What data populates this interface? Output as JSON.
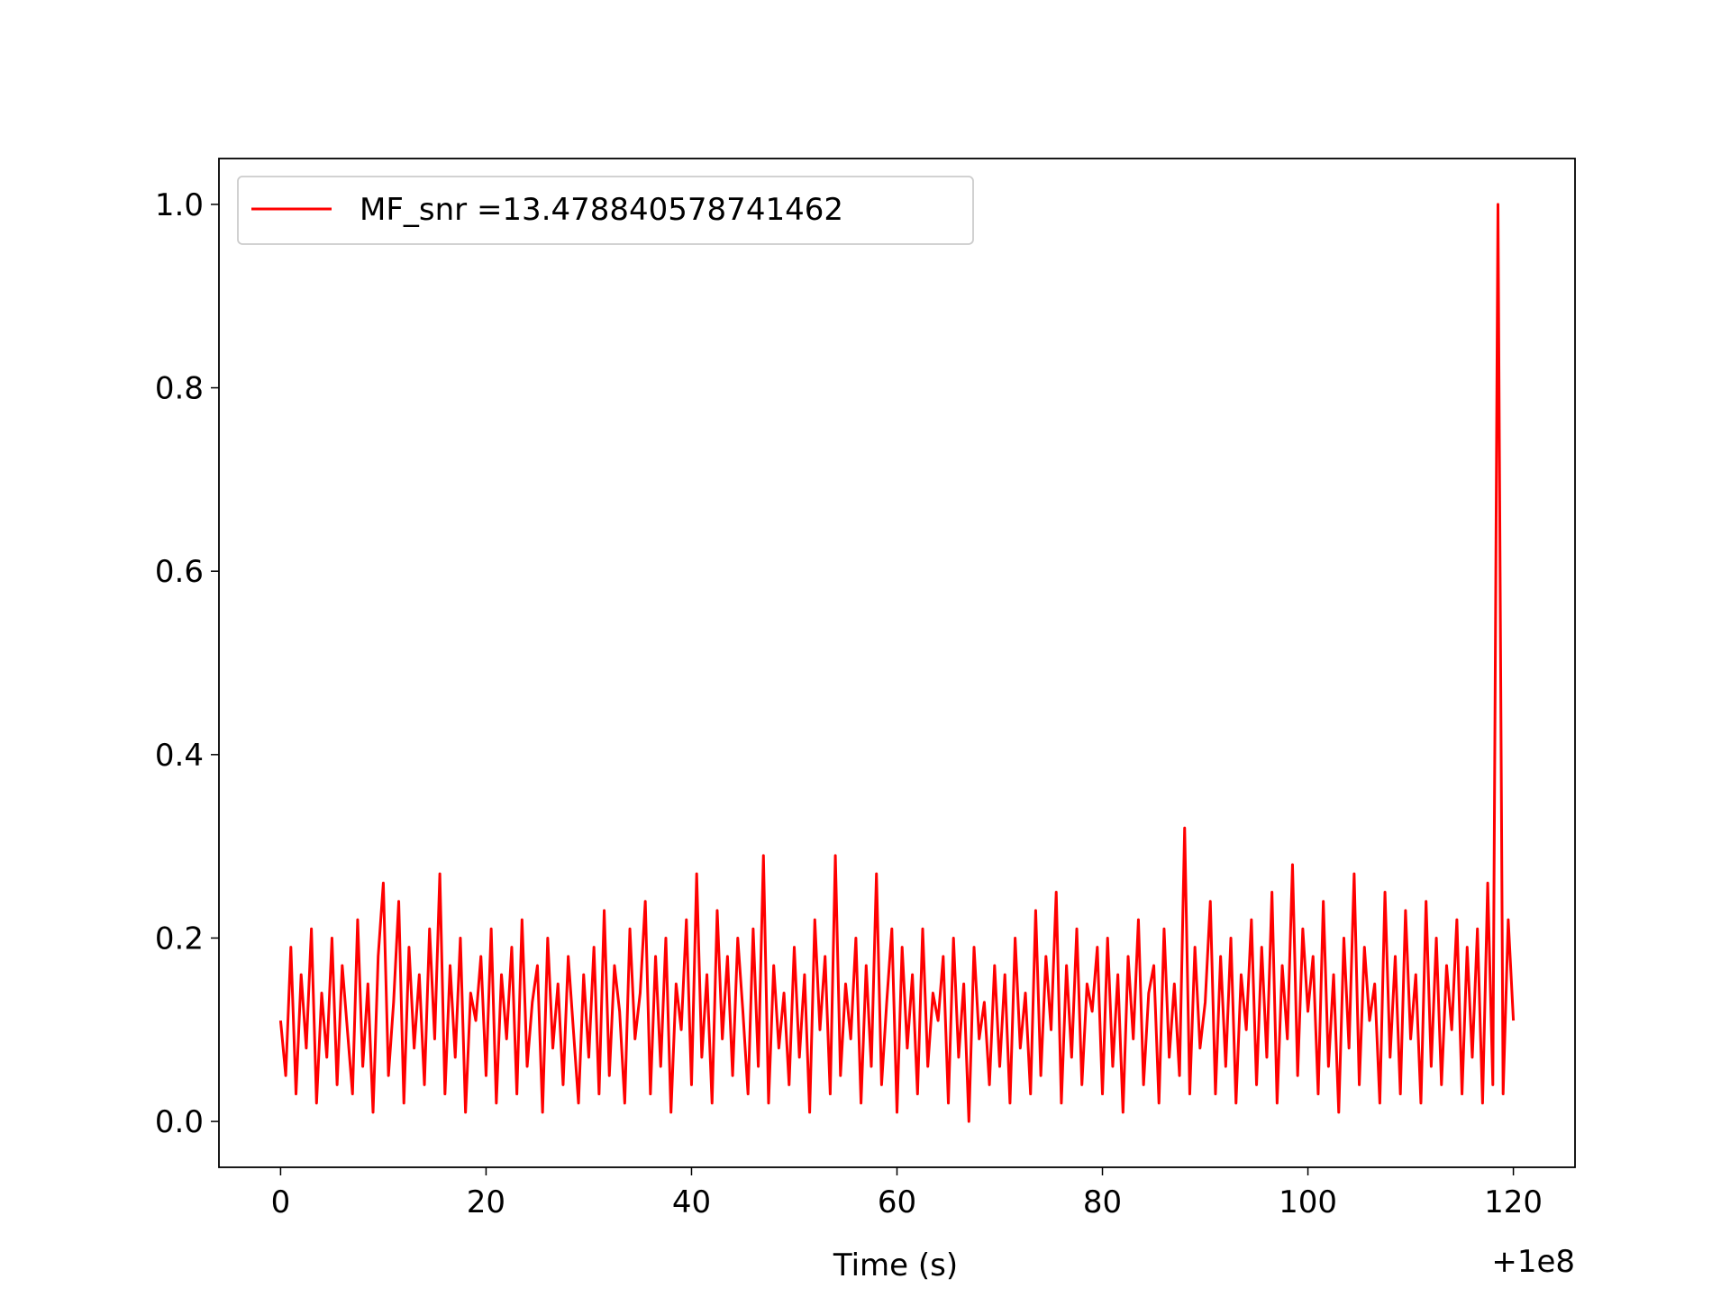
{
  "chart_data": {
    "type": "line",
    "xlabel": "Time (s)",
    "x_offset_label": "+1e8",
    "x": [
      0,
      0.5,
      1,
      1.5,
      2,
      2.5,
      3,
      3.5,
      4,
      4.5,
      5,
      5.5,
      6,
      6.5,
      7,
      7.5,
      8,
      8.5,
      9,
      9.5,
      10,
      10.5,
      11,
      11.5,
      12,
      12.5,
      13,
      13.5,
      14,
      14.5,
      15,
      15.5,
      16,
      16.5,
      17,
      17.5,
      18,
      18.5,
      19,
      19.5,
      20,
      20.5,
      21,
      21.5,
      22,
      22.5,
      23,
      23.5,
      24,
      24.5,
      25,
      25.5,
      26,
      26.5,
      27,
      27.5,
      28,
      28.5,
      29,
      29.5,
      30,
      30.5,
      31,
      31.5,
      32,
      32.5,
      33,
      33.5,
      34,
      34.5,
      35,
      35.5,
      36,
      36.5,
      37,
      37.5,
      38,
      38.5,
      39,
      39.5,
      40,
      40.5,
      41,
      41.5,
      42,
      42.5,
      43,
      43.5,
      44,
      44.5,
      45,
      45.5,
      46,
      46.5,
      47,
      47.5,
      48,
      48.5,
      49,
      49.5,
      50,
      50.5,
      51,
      51.5,
      52,
      52.5,
      53,
      53.5,
      54,
      54.5,
      55,
      55.5,
      56,
      56.5,
      57,
      57.5,
      58,
      58.5,
      59,
      59.5,
      60,
      60.5,
      61,
      61.5,
      62,
      62.5,
      63,
      63.5,
      64,
      64.5,
      65,
      65.5,
      66,
      66.5,
      67,
      67.5,
      68,
      68.5,
      69,
      69.5,
      70,
      70.5,
      71,
      71.5,
      72,
      72.5,
      73,
      73.5,
      74,
      74.5,
      75,
      75.5,
      76,
      76.5,
      77,
      77.5,
      78,
      78.5,
      79,
      79.5,
      80,
      80.5,
      81,
      81.5,
      82,
      82.5,
      83,
      83.5,
      84,
      84.5,
      85,
      85.5,
      86,
      86.5,
      87,
      87.5,
      88,
      88.5,
      89,
      89.5,
      90,
      90.5,
      91,
      91.5,
      92,
      92.5,
      93,
      93.5,
      94,
      94.5,
      95,
      95.5,
      96,
      96.5,
      97,
      97.5,
      98,
      98.5,
      99,
      99.5,
      100,
      100.5,
      101,
      101.5,
      102,
      102.5,
      103,
      103.5,
      104,
      104.5,
      105,
      105.5,
      106,
      106.5,
      107,
      107.5,
      108,
      108.5,
      109,
      109.5,
      110,
      110.5,
      111,
      111.5,
      112,
      112.5,
      113,
      113.5,
      114,
      114.5,
      115,
      115.5,
      116,
      116.5,
      117,
      117.5,
      118,
      118.5,
      119,
      119.5,
      120
    ],
    "series": [
      {
        "name": "MF_snr =13.478840578741462",
        "color": "#ff0000",
        "values": [
          0.11,
          0.05,
          0.19,
          0.03,
          0.16,
          0.08,
          0.21,
          0.02,
          0.14,
          0.07,
          0.2,
          0.04,
          0.17,
          0.1,
          0.03,
          0.22,
          0.06,
          0.15,
          0.01,
          0.18,
          0.26,
          0.05,
          0.13,
          0.24,
          0.02,
          0.19,
          0.08,
          0.16,
          0.04,
          0.21,
          0.09,
          0.27,
          0.03,
          0.17,
          0.07,
          0.2,
          0.01,
          0.14,
          0.11,
          0.18,
          0.05,
          0.21,
          0.02,
          0.16,
          0.09,
          0.19,
          0.03,
          0.22,
          0.06,
          0.13,
          0.17,
          0.01,
          0.2,
          0.08,
          0.15,
          0.04,
          0.18,
          0.1,
          0.02,
          0.16,
          0.07,
          0.19,
          0.03,
          0.23,
          0.05,
          0.17,
          0.12,
          0.02,
          0.21,
          0.09,
          0.14,
          0.24,
          0.03,
          0.18,
          0.06,
          0.2,
          0.01,
          0.15,
          0.1,
          0.22,
          0.04,
          0.27,
          0.07,
          0.16,
          0.02,
          0.23,
          0.09,
          0.18,
          0.05,
          0.2,
          0.12,
          0.03,
          0.21,
          0.06,
          0.29,
          0.02,
          0.17,
          0.08,
          0.14,
          0.04,
          0.19,
          0.07,
          0.16,
          0.01,
          0.22,
          0.1,
          0.18,
          0.03,
          0.29,
          0.05,
          0.15,
          0.09,
          0.2,
          0.02,
          0.17,
          0.06,
          0.27,
          0.04,
          0.13,
          0.21,
          0.01,
          0.19,
          0.08,
          0.16,
          0.03,
          0.21,
          0.06,
          0.14,
          0.11,
          0.18,
          0.02,
          0.2,
          0.07,
          0.15,
          0.0,
          0.19,
          0.09,
          0.13,
          0.04,
          0.17,
          0.06,
          0.16,
          0.02,
          0.2,
          0.08,
          0.14,
          0.03,
          0.23,
          0.05,
          0.18,
          0.1,
          0.25,
          0.02,
          0.17,
          0.07,
          0.21,
          0.04,
          0.15,
          0.12,
          0.19,
          0.03,
          0.2,
          0.06,
          0.16,
          0.01,
          0.18,
          0.09,
          0.22,
          0.04,
          0.14,
          0.17,
          0.02,
          0.21,
          0.07,
          0.15,
          0.05,
          0.32,
          0.03,
          0.19,
          0.08,
          0.13,
          0.24,
          0.03,
          0.18,
          0.06,
          0.2,
          0.02,
          0.16,
          0.1,
          0.22,
          0.04,
          0.19,
          0.07,
          0.25,
          0.02,
          0.17,
          0.09,
          0.28,
          0.05,
          0.21,
          0.12,
          0.18,
          0.03,
          0.24,
          0.06,
          0.16,
          0.01,
          0.2,
          0.08,
          0.27,
          0.04,
          0.19,
          0.11,
          0.15,
          0.02,
          0.25,
          0.07,
          0.18,
          0.03,
          0.23,
          0.09,
          0.16,
          0.02,
          0.24,
          0.06,
          0.2,
          0.04,
          0.17,
          0.1,
          0.22,
          0.03,
          0.19,
          0.07,
          0.21,
          0.02,
          0.26,
          0.04,
          1.0,
          0.03,
          0.22,
          0.11
        ]
      }
    ],
    "xlim": [
      -6,
      126
    ],
    "xticks": [
      0,
      20,
      40,
      60,
      80,
      100,
      120
    ],
    "ylim": [
      -0.05,
      1.05
    ],
    "yticks": [
      {
        "value": 0,
        "label": "0.0"
      },
      0.2,
      0.4,
      0.6,
      0.8,
      {
        "value": 1,
        "label": "1.0"
      }
    ],
    "legend": "upper left",
    "grid": false
  }
}
